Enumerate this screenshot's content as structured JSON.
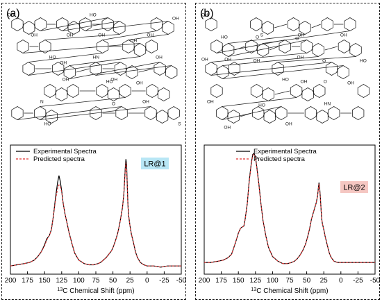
{
  "panels": [
    {
      "tag": "(a)",
      "structure_labels": [
        "OH",
        "OH",
        "OH",
        "OH",
        "HN",
        "OH",
        "OH",
        "OH",
        "N",
        "HO",
        "OH",
        "HO",
        "O",
        "S",
        "OH",
        "HO",
        "OH",
        "HO",
        "OH",
        "OH",
        "OH"
      ],
      "badge": {
        "text": "LR@1",
        "color": "#b8e6f5"
      },
      "chart_data": {
        "type": "line",
        "xlabel": "13C Chemical Shift (ppm)",
        "xlabel_sup": "13",
        "xlabel_rest": "C Chemical Shift (ppm)",
        "xlim": [
          200,
          -50
        ],
        "xticks": [
          200,
          175,
          150,
          125,
          100,
          75,
          50,
          25,
          0,
          -25,
          -50
        ],
        "legend": [
          "Experimental Spectra",
          "Predicted spectra"
        ],
        "legend_position": "top-left",
        "series": [
          {
            "name": "Experimental Spectra",
            "color": "#000000",
            "style": "solid",
            "x": [
              200,
              190,
              180,
              172,
              165,
              160,
              155,
              150,
              147,
              143,
              140,
              137,
              134,
              131,
              129,
              127,
              125,
              123,
              120,
              117,
              114,
              110,
              106,
              100,
              92,
              85,
              78,
              72,
              68,
              64,
              60,
              56,
              52,
              49,
              46,
              43,
              40,
              38,
              36,
              34,
              33,
              32,
              31,
              30,
              29,
              28,
              27,
              25,
              23,
              20,
              17,
              14,
              10,
              5,
              0,
              -10,
              -20,
              -30,
              -40,
              -50
            ],
            "y": [
              0.02,
              0.03,
              0.04,
              0.05,
              0.07,
              0.1,
              0.14,
              0.2,
              0.25,
              0.28,
              0.33,
              0.45,
              0.6,
              0.73,
              0.79,
              0.74,
              0.66,
              0.56,
              0.46,
              0.38,
              0.3,
              0.21,
              0.13,
              0.07,
              0.04,
              0.03,
              0.03,
              0.04,
              0.05,
              0.07,
              0.09,
              0.12,
              0.15,
              0.19,
              0.24,
              0.3,
              0.38,
              0.45,
              0.52,
              0.63,
              0.74,
              0.85,
              0.93,
              0.88,
              0.7,
              0.54,
              0.45,
              0.36,
              0.29,
              0.22,
              0.14,
              0.09,
              0.05,
              0.03,
              0.02,
              0.02,
              0.01,
              0.02,
              0.02,
              0.02
            ]
          },
          {
            "name": "Predicted spectra",
            "color": "#e03030",
            "style": "dashed",
            "x": [
              200,
              190,
              180,
              172,
              165,
              160,
              155,
              150,
              147,
              143,
              140,
              137,
              134,
              131,
              129,
              127,
              125,
              123,
              120,
              117,
              114,
              110,
              106,
              100,
              92,
              85,
              78,
              72,
              68,
              64,
              60,
              56,
              52,
              49,
              46,
              43,
              40,
              38,
              36,
              34,
              33,
              32,
              31,
              30,
              29,
              28,
              27,
              25,
              23,
              20,
              17,
              14,
              10,
              5,
              0,
              -10,
              -20,
              -30,
              -40,
              -50
            ],
            "y": [
              0.02,
              0.03,
              0.04,
              0.05,
              0.07,
              0.1,
              0.14,
              0.19,
              0.24,
              0.28,
              0.33,
              0.45,
              0.58,
              0.68,
              0.71,
              0.7,
              0.65,
              0.56,
              0.46,
              0.38,
              0.3,
              0.21,
              0.13,
              0.07,
              0.04,
              0.03,
              0.03,
              0.04,
              0.05,
              0.07,
              0.09,
              0.12,
              0.15,
              0.19,
              0.24,
              0.3,
              0.38,
              0.45,
              0.52,
              0.63,
              0.73,
              0.83,
              0.9,
              0.84,
              0.68,
              0.53,
              0.45,
              0.36,
              0.29,
              0.22,
              0.14,
              0.09,
              0.05,
              0.03,
              0.02,
              0.02,
              0.01,
              0.02,
              0.02,
              0.02
            ]
          }
        ]
      }
    },
    {
      "tag": "(b)",
      "structure_labels": [
        "OH",
        "OH",
        "OH",
        "O",
        "OH",
        "HO",
        "OH",
        "OH",
        "HO",
        "O",
        "OH",
        "OH",
        "HN",
        "S",
        "O",
        "HO",
        "OH",
        "O",
        "OH",
        "HO",
        "OH",
        "OH"
      ],
      "badge": {
        "text": "LR@2",
        "color": "#f5c7c2"
      },
      "chart_data": {
        "type": "line",
        "xlabel": "13C Chemical Shift (ppm)",
        "xlabel_sup": "13",
        "xlabel_rest": "C Chemical Shift (ppm)",
        "xlim": [
          200,
          -50
        ],
        "xticks": [
          200,
          175,
          150,
          125,
          100,
          75,
          50,
          25,
          0,
          -25,
          -50
        ],
        "legend": [
          "Experimental Spectra",
          "Predicted spectra"
        ],
        "legend_position": "top-center",
        "series": [
          {
            "name": "Experimental Spectra",
            "color": "#000000",
            "style": "solid",
            "x": [
              200,
              190,
              180,
              172,
              165,
              160,
              157,
              153,
              150,
              147,
              145,
              142,
              140,
              137,
              134,
              131,
              129,
              127,
              125,
              123,
              120,
              117,
              114,
              110,
              106,
              100,
              92,
              85,
              78,
              72,
              68,
              64,
              60,
              56,
              52,
              49,
              46,
              43,
              40,
              38,
              36,
              34,
              33,
              32,
              31,
              30,
              29,
              28,
              27,
              25,
              23,
              20,
              17,
              14,
              10,
              5,
              0,
              -10,
              -20,
              -30,
              -40,
              -50
            ],
            "y": [
              0.05,
              0.05,
              0.06,
              0.07,
              0.09,
              0.12,
              0.17,
              0.24,
              0.3,
              0.34,
              0.35,
              0.36,
              0.42,
              0.55,
              0.75,
              0.9,
              0.97,
              0.98,
              0.95,
              0.86,
              0.72,
              0.55,
              0.41,
              0.28,
              0.18,
              0.1,
              0.06,
              0.04,
              0.04,
              0.05,
              0.06,
              0.08,
              0.11,
              0.15,
              0.2,
              0.26,
              0.33,
              0.42,
              0.48,
              0.52,
              0.56,
              0.62,
              0.68,
              0.73,
              0.68,
              0.6,
              0.5,
              0.42,
              0.38,
              0.33,
              0.27,
              0.2,
              0.13,
              0.09,
              0.06,
              0.05,
              0.05,
              0.05,
              0.05,
              0.05,
              0.05,
              0.05
            ]
          },
          {
            "name": "Predicted spectra",
            "color": "#e03030",
            "style": "dashed",
            "x": [
              200,
              190,
              180,
              172,
              165,
              160,
              157,
              153,
              150,
              147,
              145,
              142,
              140,
              137,
              134,
              131,
              129,
              127,
              125,
              123,
              120,
              117,
              114,
              110,
              106,
              100,
              92,
              85,
              78,
              72,
              68,
              64,
              60,
              56,
              52,
              49,
              46,
              43,
              40,
              38,
              36,
              34,
              33,
              32,
              31,
              30,
              29,
              28,
              27,
              25,
              23,
              20,
              17,
              14,
              10,
              5,
              0,
              -10,
              -20,
              -30,
              -40,
              -50
            ],
            "y": [
              0.05,
              0.05,
              0.06,
              0.07,
              0.09,
              0.12,
              0.17,
              0.24,
              0.3,
              0.34,
              0.35,
              0.36,
              0.42,
              0.55,
              0.74,
              0.89,
              0.96,
              0.97,
              0.94,
              0.85,
              0.71,
              0.55,
              0.41,
              0.28,
              0.18,
              0.1,
              0.06,
              0.04,
              0.04,
              0.05,
              0.06,
              0.08,
              0.11,
              0.15,
              0.2,
              0.26,
              0.33,
              0.42,
              0.48,
              0.52,
              0.56,
              0.62,
              0.67,
              0.72,
              0.67,
              0.59,
              0.5,
              0.42,
              0.38,
              0.33,
              0.27,
              0.2,
              0.13,
              0.09,
              0.06,
              0.05,
              0.05,
              0.05,
              0.05,
              0.05,
              0.05,
              0.05
            ]
          }
        ]
      }
    }
  ]
}
